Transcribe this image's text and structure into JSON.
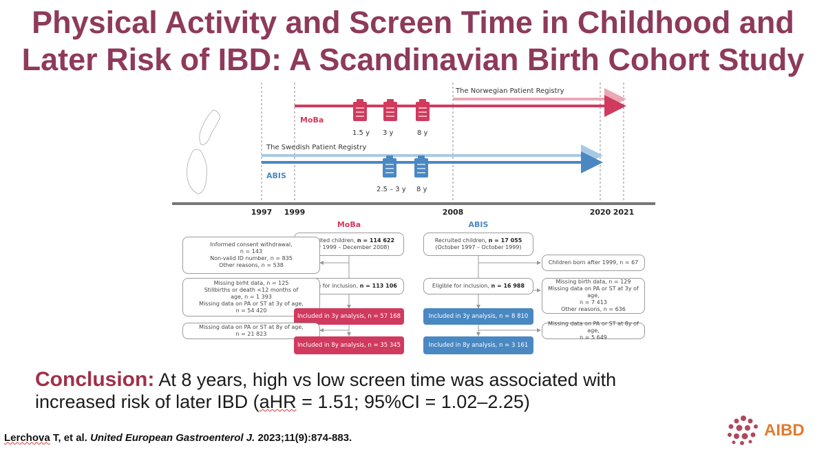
{
  "title": {
    "line1": "Physical Activity and Screen Time in Childhood and",
    "line2": "Later Risk of IBD: A Scandinavian Birth Cohort Study"
  },
  "timeline": {
    "norwegian_registry": "The Norwegian Patient Registry",
    "swedish_registry": "The Swedish Patient Registry",
    "moba_label": "MoBa",
    "abis_label": "ABIS",
    "moba_ages": [
      "1.5 y",
      "3 y",
      "8 y"
    ],
    "abis_ages": [
      "2.5 – 3 y",
      "8 y"
    ],
    "years": [
      "1997",
      "1999",
      "2008",
      "2020",
      "2021"
    ],
    "colors": {
      "moba": "#d03a5e",
      "abis": "#4a88c2",
      "axis": "#777777"
    }
  },
  "flowchart": {
    "moba_header": "MoBa",
    "abis_header": "ABIS",
    "moba": {
      "recruited_line1_prefix": "Recruited children, ",
      "recruited_line1_bold": "n = 114 622",
      "recruited_line2": "(July 1999 – December 2008)",
      "exclusion1": [
        "Informed consent withdrawal,",
        "n = 143",
        "Non-valid ID number, n = 835",
        "Other reasons, n = 538"
      ],
      "eligible_prefix": "Eligible for inclusion, ",
      "eligible_bold": "n = 113 106",
      "exclusion2": [
        "Missing birht data, n = 125",
        "Stillbirths or death <12 months of",
        "age, n = 1 393",
        "Missing data on PA or ST at 3y of age,",
        "n = 54 420"
      ],
      "included3": "Included in 3y analysis, n = 57 168",
      "exclusion3": [
        "Missing data on PA or ST at 8y of age,",
        "n = 21 823"
      ],
      "included8": "Included in 8y analysis, n = 35 345"
    },
    "abis": {
      "recruited_line1_prefix": "Recruited children, ",
      "recruited_line1_bold": "n = 17 055",
      "recruited_line2": "(October 1997 – October 1999)",
      "exclusion1": [
        "Children born after 1999, n = 67"
      ],
      "eligible_prefix": "Eligible for inclusion, ",
      "eligible_bold": "n = 16 988",
      "exclusion2": [
        "Missing birth data, n = 129",
        "Missing data on PA or ST at 3y of age,",
        "n = 7 413",
        "Other reasons, n = 636"
      ],
      "included3": "Included in 3y analysis, n = 8 810",
      "exclusion3": [
        "Missing data on PA or ST at 8y of age,",
        "n = 5 649"
      ],
      "included8": "Included in 8y analysis, n = 3 161"
    }
  },
  "conclusion": {
    "lead": "Conclusion:",
    "line1": " At 8 years, high vs low screen time was associated with",
    "line2_a": "increased risk of later IBD (",
    "line2_b": "aHR",
    "line2_c": " = 1.51; 95%CI = 1.02–2.25)"
  },
  "citation": {
    "author": "Lerchova",
    "rest": " T, et al. ",
    "journal": "United European Gastroenterol J.",
    "details": " 2023;11(9):874-883."
  },
  "logo": {
    "text": "AIBD",
    "color": "#e07b30"
  }
}
